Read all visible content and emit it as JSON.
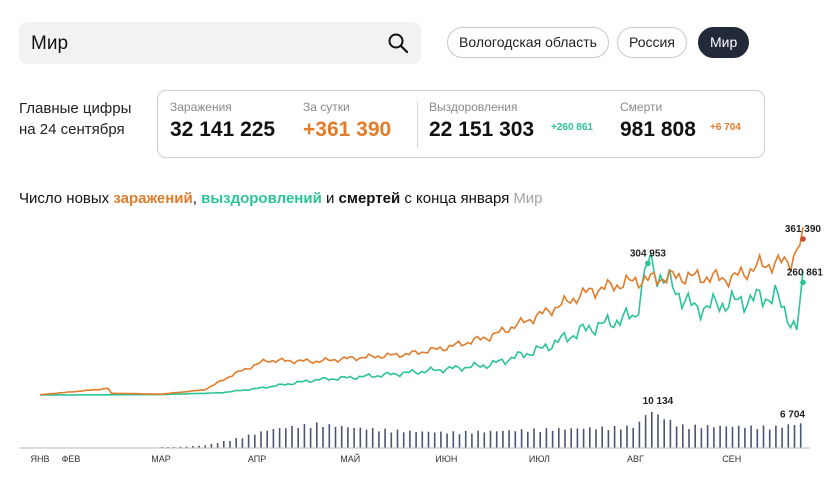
{
  "search": {
    "value": "Мир"
  },
  "regions": [
    {
      "label": "Вологодская область",
      "active": false
    },
    {
      "label": "Россия",
      "active": false
    },
    {
      "label": "Мир",
      "active": true
    }
  ],
  "main_figures": {
    "line1": "Главные цифры",
    "line2": "на 24 сентября"
  },
  "stats": {
    "infections": {
      "label": "Заражения",
      "value": "32 141 225"
    },
    "daily": {
      "label": "За сутки",
      "value": "+361 390"
    },
    "recovered": {
      "label": "Выздоровления",
      "value": "22 151 303",
      "delta": "+260 861"
    },
    "deaths": {
      "label": "Смерти",
      "value": "981 808",
      "delta": "+6 704"
    }
  },
  "chart_heading": {
    "prefix": "Число новых ",
    "infections": "заражений",
    "sep1": ", ",
    "recoveries": "выздоровлений",
    "sep2": " и ",
    "deaths": "смертей",
    "suffix": " с конца января",
    "region": "Мир"
  },
  "colors": {
    "infections": "#e07c2a",
    "infections_late": "#c94a2f",
    "recoveries_early": "#a8e3ea",
    "recoveries": "#2cc39a",
    "deaths_bars": "#4b5573",
    "accent_orange": "#e07c2a",
    "accent_green": "#2cc39a"
  },
  "chart_data": {
    "type": "line",
    "x_range": [
      "2020-01-22",
      "2020-09-24"
    ],
    "months": [
      "ЯНВ",
      "ФЕВ",
      "МАР",
      "АПР",
      "МАЙ",
      "ИЮН",
      "ИЮЛ",
      "АВГ",
      "СЕН"
    ],
    "annotations": {
      "infections_max": "361 390",
      "recoveries_peak": "304 953",
      "recoveries_last": "260 861",
      "deaths_peak": "10 134",
      "deaths_last": "6 704"
    },
    "infections_keypoints": [
      [
        "2020-01-22",
        600
      ],
      [
        "2020-02-13",
        15000
      ],
      [
        "2020-02-14",
        4000
      ],
      [
        "2020-03-01",
        2000
      ],
      [
        "2020-03-15",
        12000
      ],
      [
        "2020-03-25",
        50000
      ],
      [
        "2020-04-04",
        80000
      ],
      [
        "2020-04-20",
        78000
      ],
      [
        "2020-05-01",
        85000
      ],
      [
        "2020-05-20",
        95000
      ],
      [
        "2020-06-01",
        110000
      ],
      [
        "2020-06-15",
        135000
      ],
      [
        "2020-07-01",
        185000
      ],
      [
        "2020-07-17",
        240000
      ],
      [
        "2020-08-01",
        265000
      ],
      [
        "2020-08-15",
        275000
      ],
      [
        "2020-09-01",
        270000
      ],
      [
        "2020-09-10",
        300000
      ],
      [
        "2020-09-20",
        310000
      ],
      [
        "2020-09-24",
        361390
      ]
    ],
    "recoveries_keypoints": [
      [
        "2020-01-22",
        0
      ],
      [
        "2020-03-01",
        1000
      ],
      [
        "2020-03-20",
        5000
      ],
      [
        "2020-04-01",
        15000
      ],
      [
        "2020-04-20",
        35000
      ],
      [
        "2020-05-10",
        45000
      ],
      [
        "2020-06-01",
        60000
      ],
      [
        "2020-06-15",
        70000
      ],
      [
        "2020-07-01",
        105000
      ],
      [
        "2020-07-15",
        150000
      ],
      [
        "2020-08-01",
        185000
      ],
      [
        "2020-08-05",
        304953
      ],
      [
        "2020-08-20",
        200000
      ],
      [
        "2020-09-01",
        215000
      ],
      [
        "2020-09-15",
        230000
      ],
      [
        "2020-09-22",
        150000
      ],
      [
        "2020-09-24",
        260861
      ]
    ],
    "deaths_keypoints": [
      [
        "2020-01-22",
        20
      ],
      [
        "2020-03-01",
        60
      ],
      [
        "2020-03-15",
        700
      ],
      [
        "2020-03-25",
        2500
      ],
      [
        "2020-04-05",
        5000
      ],
      [
        "2020-04-20",
        6500
      ],
      [
        "2020-05-01",
        5500
      ],
      [
        "2020-05-20",
        4500
      ],
      [
        "2020-06-01",
        4200
      ],
      [
        "2020-06-15",
        4500
      ],
      [
        "2020-07-01",
        5000
      ],
      [
        "2020-07-15",
        5300
      ],
      [
        "2020-08-01",
        5800
      ],
      [
        "2020-08-05",
        10134
      ],
      [
        "2020-08-15",
        6000
      ],
      [
        "2020-09-01",
        5800
      ],
      [
        "2020-09-15",
        5700
      ],
      [
        "2020-09-24",
        6704
      ]
    ]
  }
}
